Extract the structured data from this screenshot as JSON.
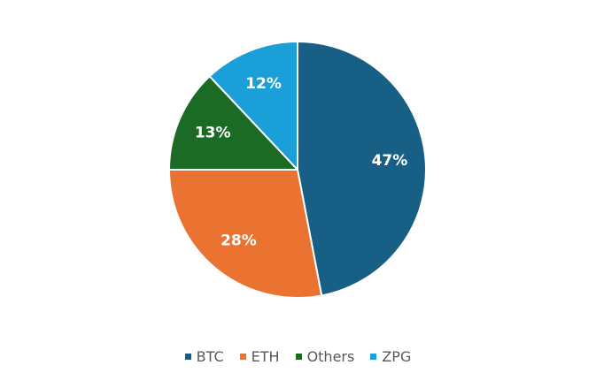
{
  "chart_data": {
    "type": "pie",
    "title": "",
    "legend_position": "bottom",
    "slices": [
      {
        "name": "BTC",
        "value": 47,
        "label": "47%",
        "color": "#185F86"
      },
      {
        "name": "ETH",
        "value": 28,
        "label": "28%",
        "color": "#EA7331"
      },
      {
        "name": "Others",
        "value": 13,
        "label": "13%",
        "color": "#1B6B27"
      },
      {
        "name": "ZPG",
        "value": 12,
        "label": "12%",
        "color": "#1A9FD9"
      }
    ]
  }
}
